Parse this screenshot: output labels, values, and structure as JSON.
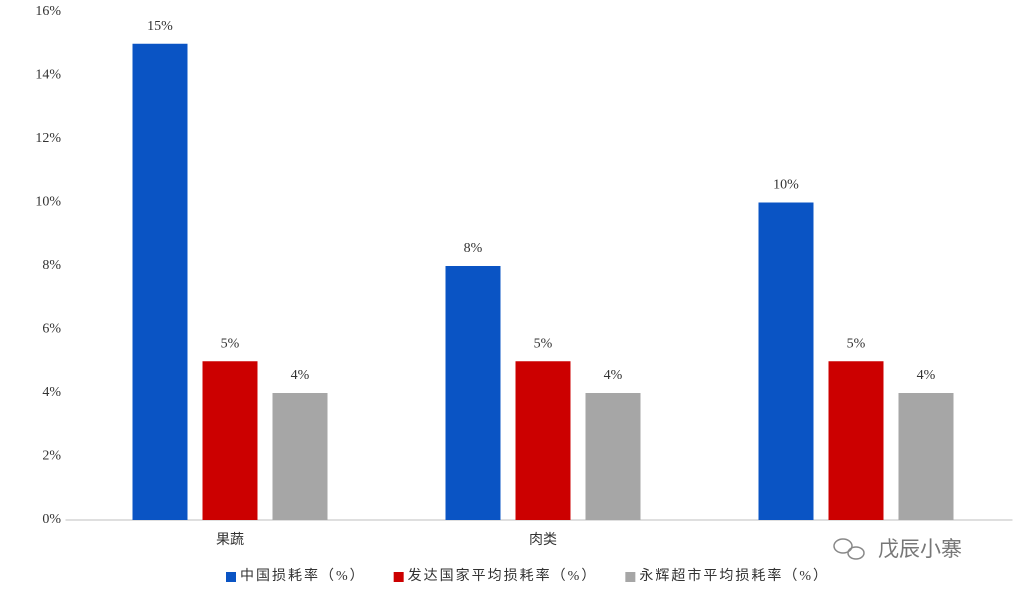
{
  "chart_data": {
    "type": "bar",
    "categories": [
      "果蔬",
      "肉类",
      null
    ],
    "series": [
      {
        "name": "中国损耗率（%）",
        "color": "#0a54c4",
        "values": [
          15,
          8,
          10
        ],
        "value_labels": [
          "15%",
          "8%",
          "10%"
        ]
      },
      {
        "name": "发达国家平均损耗率（%）",
        "color": "#cc0000",
        "values": [
          5,
          5,
          5
        ],
        "value_labels": [
          "5%",
          "5%",
          "5%"
        ]
      },
      {
        "name": "永辉超市平均损耗率（%）",
        "color": "#a6a6a6",
        "values": [
          4,
          4,
          4
        ],
        "value_labels": [
          "4%",
          "4%",
          "4%"
        ]
      }
    ],
    "ylim": [
      0,
      16
    ],
    "yticks": [
      {
        "value": 0,
        "label": "0%"
      },
      {
        "value": 2,
        "label": "2%"
      },
      {
        "value": 4,
        "label": "4%"
      },
      {
        "value": 6,
        "label": "6%"
      },
      {
        "value": 8,
        "label": "8%"
      },
      {
        "value": 10,
        "label": "10%"
      },
      {
        "value": 12,
        "label": "12%"
      },
      {
        "value": 14,
        "label": "14%"
      },
      {
        "value": 16,
        "label": "16%"
      }
    ],
    "grid": false,
    "legend": "bottom",
    "watermark": "戊辰小寨"
  }
}
